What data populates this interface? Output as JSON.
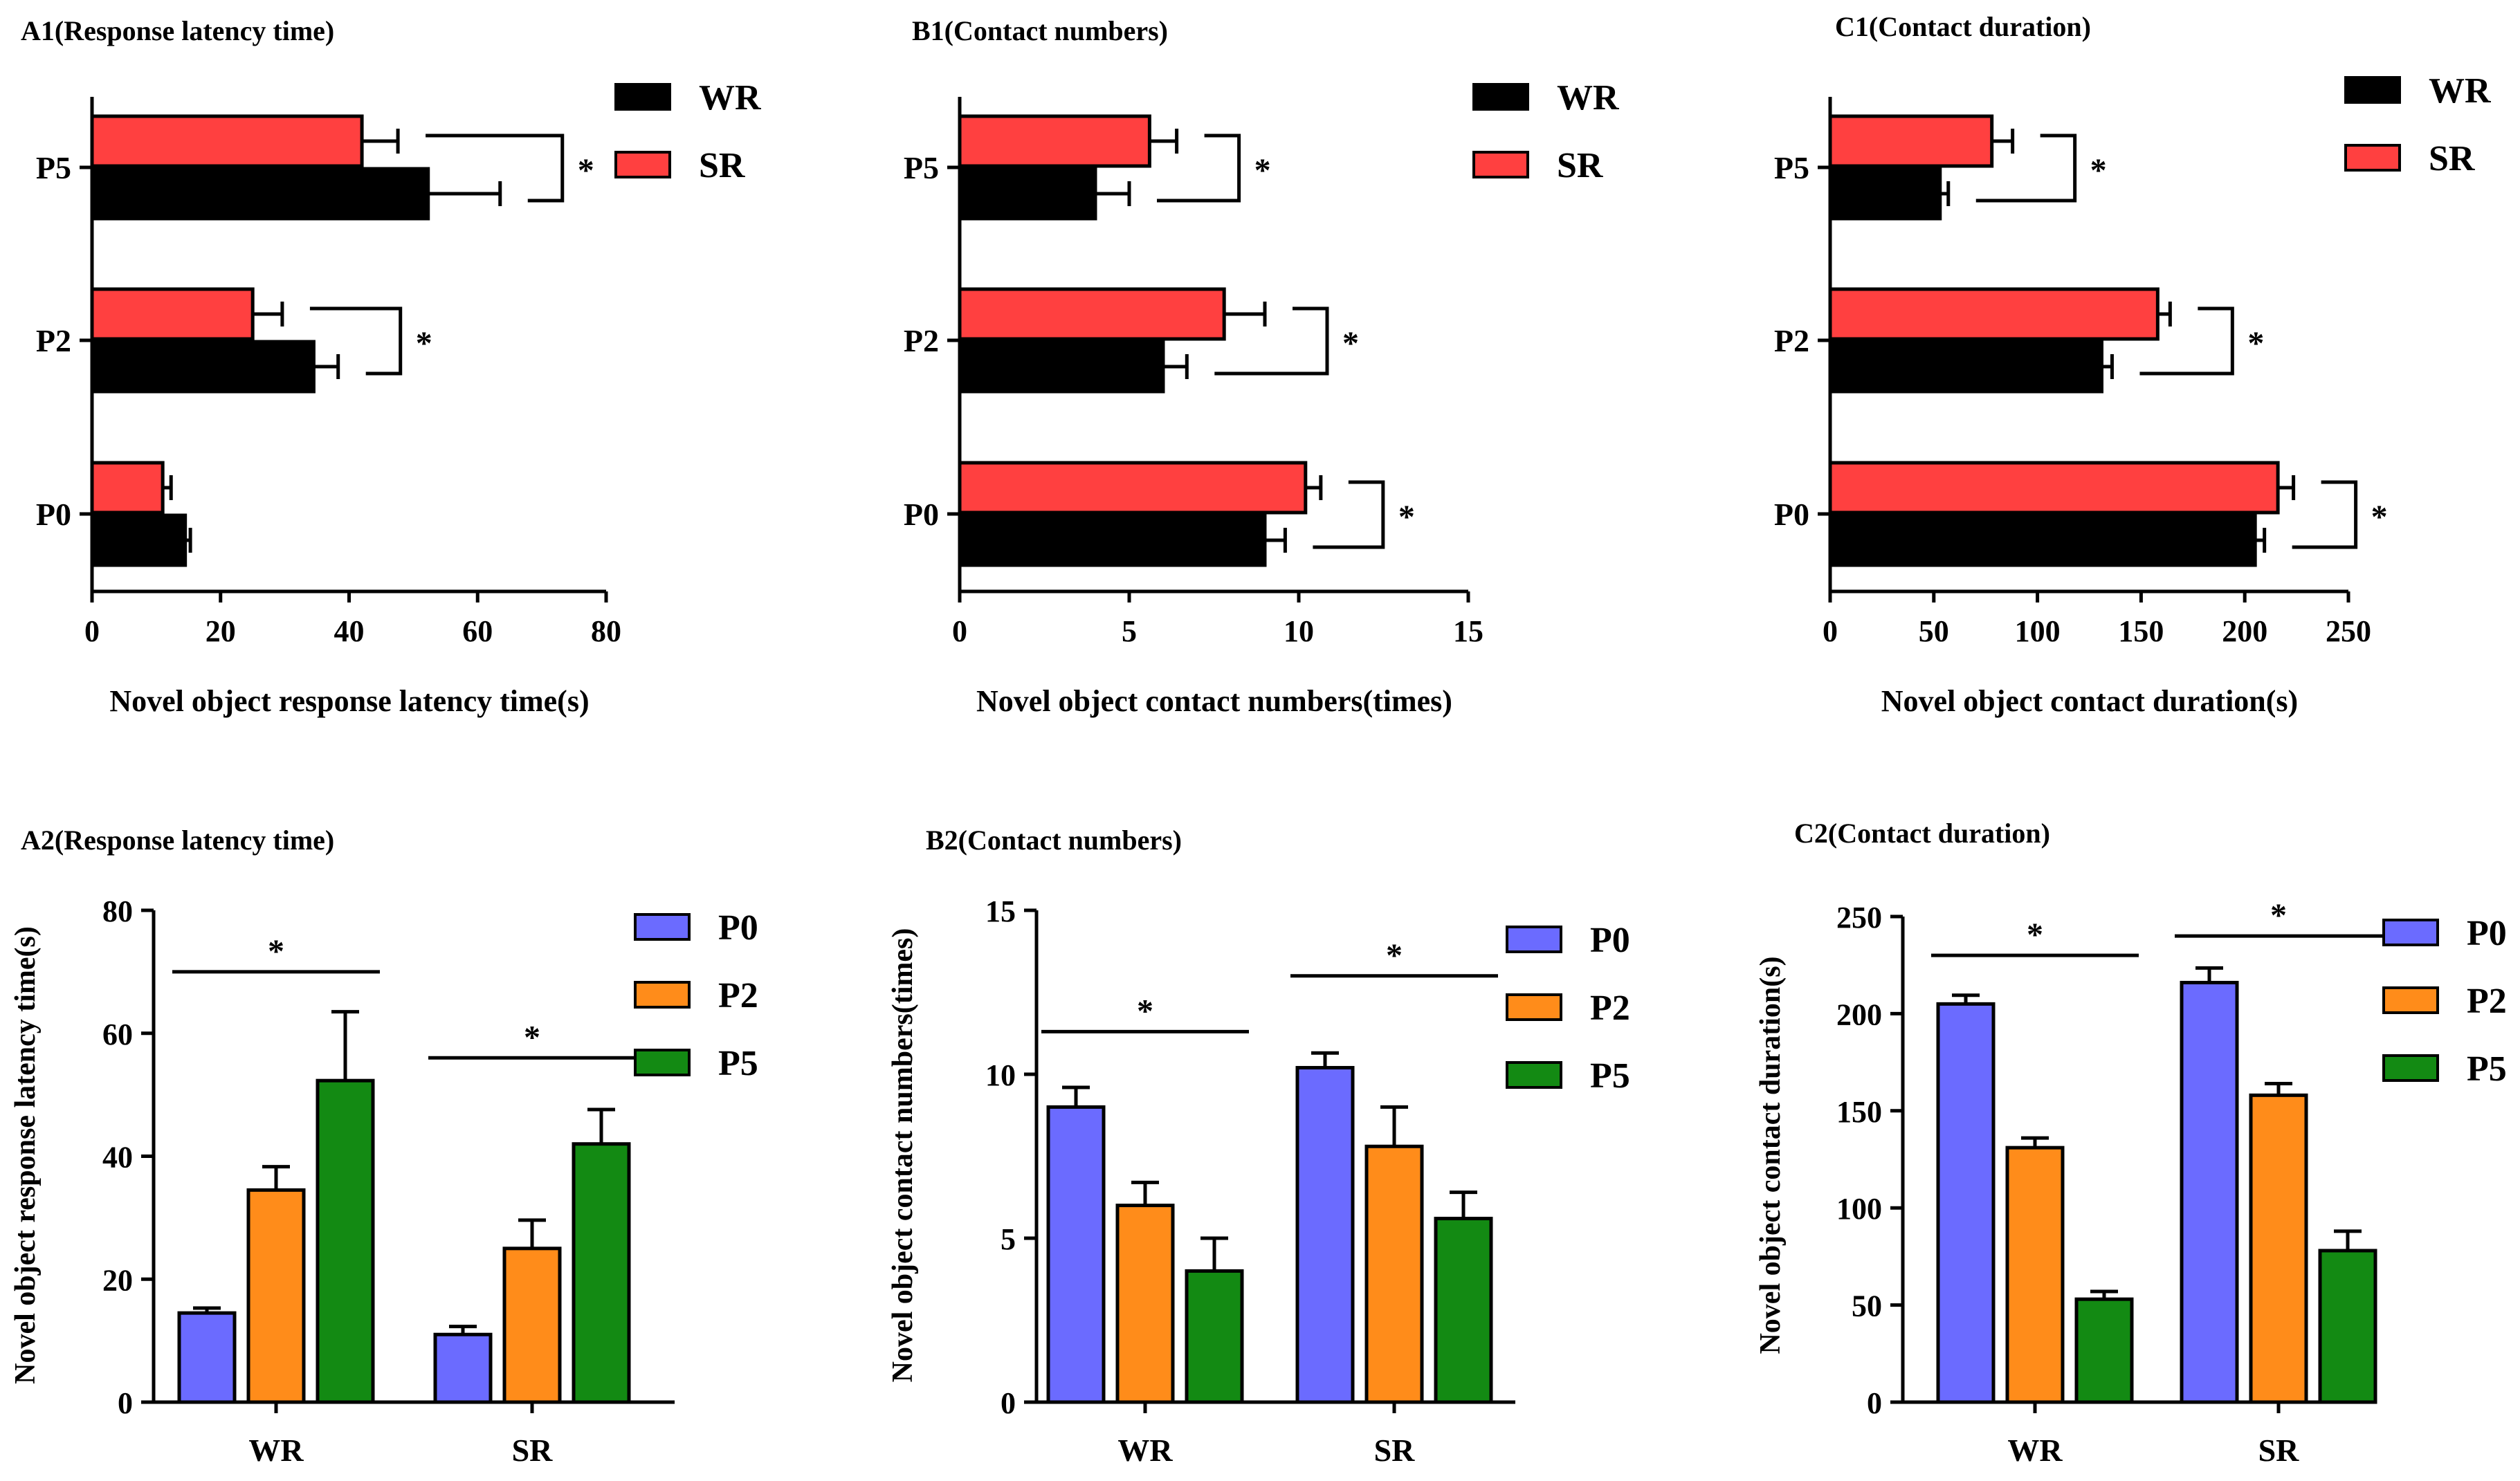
{
  "chart_data": [
    {
      "id": "A1",
      "type": "bar",
      "orientation": "horizontal",
      "title": "A1(Response latency time)",
      "xlabel": "Novel object response latency time(s)",
      "ylabel": "",
      "categories": [
        "P0",
        "P2",
        "P5"
      ],
      "series": [
        {
          "name": "WR",
          "color": "#000000",
          "values": [
            14.5,
            34.5,
            52.3
          ],
          "errors": [
            0.8,
            3.8,
            11.2
          ]
        },
        {
          "name": "SR",
          "color": "#ff4040",
          "values": [
            11.0,
            25.0,
            42.0
          ],
          "errors": [
            1.3,
            4.6,
            5.6
          ]
        }
      ],
      "xlim": [
        0,
        80
      ],
      "ticks": [
        0,
        20,
        40,
        60,
        80
      ],
      "tick_labels": [
        "0",
        "20",
        "40",
        "60",
        "80"
      ],
      "significance": [
        {
          "category": "P2",
          "label": "*"
        },
        {
          "category": "P5",
          "label": "*"
        }
      ],
      "legend": "top-right"
    },
    {
      "id": "B1",
      "type": "bar",
      "orientation": "horizontal",
      "title": "B1(Contact numbers)",
      "xlabel": "Novel object contact numbers(times)",
      "ylabel": "",
      "categories": [
        "P0",
        "P2",
        "P5"
      ],
      "series": [
        {
          "name": "WR",
          "color": "#000000",
          "values": [
            9.0,
            6.0,
            4.0
          ],
          "errors": [
            0.6,
            0.7,
            1.0
          ]
        },
        {
          "name": "SR",
          "color": "#ff4040",
          "values": [
            10.2,
            7.8,
            5.6
          ],
          "errors": [
            0.45,
            1.2,
            0.8
          ]
        }
      ],
      "xlim": [
        0,
        15
      ],
      "ticks": [
        0,
        5,
        10,
        15
      ],
      "tick_labels": [
        "0",
        "5",
        "10",
        "15"
      ],
      "significance": [
        {
          "category": "P0",
          "label": "*"
        },
        {
          "category": "P2",
          "label": "*"
        },
        {
          "category": "P5",
          "label": "*"
        }
      ],
      "legend": "top-right"
    },
    {
      "id": "C1",
      "type": "bar",
      "orientation": "horizontal",
      "title": "C1(Contact duration)",
      "xlabel": "Novel object contact duration(s)",
      "ylabel": "",
      "categories": [
        "P0",
        "P2",
        "P5"
      ],
      "series": [
        {
          "name": "WR",
          "color": "#000000",
          "values": [
            205,
            131,
            53
          ],
          "errors": [
            4.5,
            5.0,
            4.0
          ]
        },
        {
          "name": "SR",
          "color": "#ff4040",
          "values": [
            216,
            158,
            78
          ],
          "errors": [
            7.5,
            6.0,
            10.0
          ]
        }
      ],
      "xlim": [
        0,
        250
      ],
      "ticks": [
        0,
        50,
        100,
        150,
        200,
        250
      ],
      "tick_labels": [
        "0",
        "50",
        "100",
        "150",
        "200",
        "250"
      ],
      "significance": [
        {
          "category": "P0",
          "label": "*"
        },
        {
          "category": "P2",
          "label": "*"
        },
        {
          "category": "P5",
          "label": "*"
        }
      ],
      "legend": "top-right"
    },
    {
      "id": "A2",
      "type": "bar",
      "orientation": "vertical",
      "title": "A2(Response latency time)",
      "xlabel": "",
      "ylabel": "Novel object response latency time(s)",
      "categories": [
        "WR",
        "SR"
      ],
      "series": [
        {
          "name": "P0",
          "color": "#6b6bff",
          "values": [
            14.5,
            11.0
          ],
          "errors": [
            0.8,
            1.3
          ]
        },
        {
          "name": "P2",
          "color": "#ff8c1a",
          "values": [
            34.5,
            25.0
          ],
          "errors": [
            3.8,
            4.6
          ]
        },
        {
          "name": "P5",
          "color": "#138a13",
          "values": [
            52.3,
            42.0
          ],
          "errors": [
            11.2,
            5.6
          ]
        }
      ],
      "ylim": [
        0,
        80
      ],
      "ticks": [
        0,
        20,
        40,
        60,
        80
      ],
      "tick_labels": [
        "0",
        "20",
        "40",
        "60",
        "80"
      ],
      "significance": [
        {
          "category": "WR",
          "label": "*",
          "level": 70
        },
        {
          "category": "SR",
          "label": "*",
          "level": 56
        }
      ],
      "legend": "top-right"
    },
    {
      "id": "B2",
      "type": "bar",
      "orientation": "vertical",
      "title": "B2(Contact numbers)",
      "xlabel": "",
      "ylabel": "Novel object contact numbers(times)",
      "categories": [
        "WR",
        "SR"
      ],
      "series": [
        {
          "name": "P0",
          "color": "#6b6bff",
          "values": [
            9.0,
            10.2
          ],
          "errors": [
            0.6,
            0.45
          ]
        },
        {
          "name": "P2",
          "color": "#ff8c1a",
          "values": [
            6.0,
            7.8
          ],
          "errors": [
            0.7,
            1.2
          ]
        },
        {
          "name": "P5",
          "color": "#138a13",
          "values": [
            4.0,
            5.6
          ],
          "errors": [
            1.0,
            0.8
          ]
        }
      ],
      "ylim": [
        0,
        15
      ],
      "ticks": [
        0,
        5,
        10,
        15
      ],
      "tick_labels": [
        "0",
        "5",
        "10",
        "15"
      ],
      "significance": [
        {
          "category": "WR",
          "label": "*",
          "level": 11.3
        },
        {
          "category": "SR",
          "label": "*",
          "level": 13.0
        }
      ],
      "legend": "top-right"
    },
    {
      "id": "C2",
      "type": "bar",
      "orientation": "vertical",
      "title": "C2(Contact duration)",
      "xlabel": "",
      "ylabel": "Novel object contact duration(s)",
      "categories": [
        "WR",
        "SR"
      ],
      "series": [
        {
          "name": "P0",
          "color": "#6b6bff",
          "values": [
            205,
            216
          ],
          "errors": [
            4.5,
            7.5
          ]
        },
        {
          "name": "P2",
          "color": "#ff8c1a",
          "values": [
            131,
            158
          ],
          "errors": [
            5.0,
            6.0
          ]
        },
        {
          "name": "P5",
          "color": "#138a13",
          "values": [
            53,
            78
          ],
          "errors": [
            4.0,
            10.0
          ]
        }
      ],
      "ylim": [
        0,
        250
      ],
      "ticks": [
        0,
        50,
        100,
        150,
        200,
        250
      ],
      "tick_labels": [
        "0",
        "50",
        "100",
        "150",
        "200",
        "250"
      ],
      "significance": [
        {
          "category": "WR",
          "label": "*",
          "level": 230
        },
        {
          "category": "SR",
          "label": "*",
          "level": 240
        }
      ],
      "legend": "top-right"
    }
  ]
}
